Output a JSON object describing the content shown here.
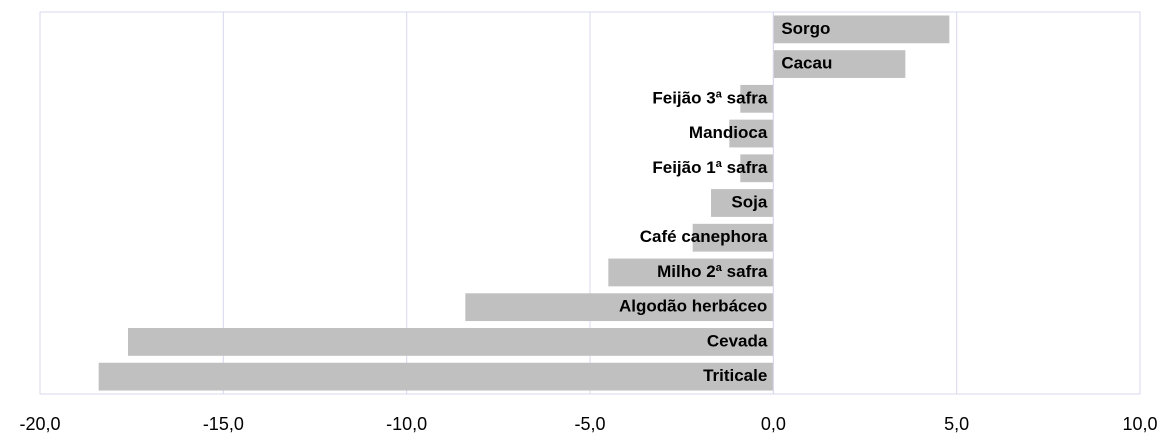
{
  "chart_data": {
    "type": "bar",
    "orientation": "horizontal",
    "categories": [
      "Sorgo",
      "Cacau",
      "Feijão 3ª safra",
      "Mandioca",
      "Feijão 1ª safra",
      "Soja",
      "Café canephora",
      "Milho 2ª safra",
      "Algodão herbáceo",
      "Cevada",
      "Triticale"
    ],
    "values": [
      4.8,
      3.6,
      -0.9,
      -1.2,
      -0.9,
      -1.7,
      -2.2,
      -4.5,
      -8.4,
      -17.6,
      -18.4
    ],
    "color": "#c0c0c0",
    "xlim": [
      -20,
      10
    ],
    "xticks": [
      {
        "value": -20,
        "label": "-20,0"
      },
      {
        "value": -15,
        "label": "-15,0"
      },
      {
        "value": -10,
        "label": "-10,0"
      },
      {
        "value": -5,
        "label": "-5,0"
      },
      {
        "value": 0,
        "label": "0,0"
      },
      {
        "value": 5,
        "label": "5,0"
      },
      {
        "value": 10,
        "label": "10,0"
      }
    ],
    "grid": true
  }
}
